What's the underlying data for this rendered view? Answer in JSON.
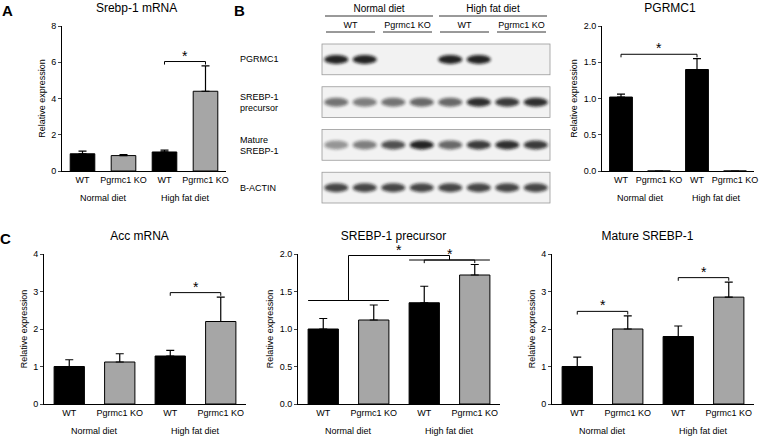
{
  "chart_data": [
    {
      "type": "bar",
      "panel": "A",
      "title": "Srebp-1 mRNA",
      "y_label": "Relative expression",
      "categories": [
        "WT",
        "Pgrmc1 KO",
        "WT",
        "Pgrmc1 KO"
      ],
      "groups": [
        "Normal diet",
        "Normal diet",
        "High fat diet",
        "High fat diet"
      ],
      "values": [
        0.95,
        0.85,
        1.05,
        4.4
      ],
      "errors": [
        0.15,
        0.05,
        0.1,
        1.4
      ],
      "colors": [
        "#000000",
        "#a6a6a6",
        "#000000",
        "#a6a6a6"
      ],
      "ylim": [
        0,
        8
      ],
      "yticks": [
        0,
        2,
        4,
        6,
        8
      ],
      "grid": false,
      "significance": [
        {
          "from": 2,
          "to": 3,
          "label": "*"
        }
      ]
    },
    {
      "type": "bar",
      "title": "PGRMC1",
      "y_label": "Relative expression",
      "categories": [
        "WT",
        "Pgrmc1 KO",
        "WT",
        "Pgrmc1 KO"
      ],
      "groups": [
        "Normal diet",
        "Normal diet",
        "High fat diet",
        "High fat diet"
      ],
      "values": [
        1.02,
        0,
        1.4,
        0
      ],
      "errors": [
        0.04,
        0,
        0.15,
        0
      ],
      "colors": [
        "#000000",
        "#a6a6a6",
        "#000000",
        "#a6a6a6"
      ],
      "ylim": [
        0,
        2
      ],
      "yticks": [
        {
          "value": 0,
          "label": "0.0"
        },
        {
          "value": 0.5,
          "label": "0.5"
        },
        {
          "value": 1,
          "label": "1.0"
        },
        {
          "value": 1.5,
          "label": "1.5"
        },
        {
          "value": 2,
          "label": "2.0"
        }
      ],
      "grid": false,
      "significance": [
        {
          "from": 0,
          "to": 2,
          "label": "*"
        }
      ]
    },
    {
      "type": "bar",
      "panel": "C",
      "title": "Acc mRNA",
      "y_label": "Relative expression",
      "categories": [
        "WT",
        "Pgrmc1 KO",
        "WT",
        "Pgrmc1 KO"
      ],
      "groups": [
        "Normal diet",
        "Normal diet",
        "High fat diet",
        "High fat diet"
      ],
      "values": [
        1.0,
        1.12,
        1.28,
        2.2
      ],
      "errors": [
        0.18,
        0.22,
        0.15,
        0.65
      ],
      "colors": [
        "#000000",
        "#a6a6a6",
        "#000000",
        "#a6a6a6"
      ],
      "ylim": [
        0,
        4
      ],
      "yticks": [
        0,
        1,
        2,
        3,
        4
      ],
      "grid": false,
      "significance": [
        {
          "from": 2,
          "to": 3,
          "label": "*"
        }
      ]
    },
    {
      "type": "bar",
      "title": "SREBP-1 precursor",
      "y_label": "Relative expression",
      "categories": [
        "WT",
        "Pgrmc1 KO",
        "WT",
        "Pgrmc1 KO"
      ],
      "groups": [
        "Normal diet",
        "Normal diet",
        "High fat diet",
        "High fat diet"
      ],
      "values": [
        1.0,
        1.12,
        1.35,
        1.72
      ],
      "errors": [
        0.14,
        0.2,
        0.22,
        0.14
      ],
      "colors": [
        "#000000",
        "#a6a6a6",
        "#000000",
        "#a6a6a6"
      ],
      "ylim": [
        0,
        2
      ],
      "yticks": [
        {
          "value": 0,
          "label": "0.0"
        },
        {
          "value": 0.5,
          "label": "0.5"
        },
        {
          "value": 1,
          "label": "1.0"
        },
        {
          "value": 1.5,
          "label": "1.5"
        },
        {
          "value": 2,
          "label": "2.0"
        }
      ],
      "grid": false,
      "significance": [
        {
          "from": 2,
          "to": 3,
          "label": "*"
        },
        {
          "from": [
            0,
            1
          ],
          "to": [
            2,
            3
          ],
          "label": "*"
        }
      ]
    },
    {
      "type": "bar",
      "title": "Mature SREBP-1",
      "y_label": "Relative expression",
      "categories": [
        "WT",
        "Pgrmc1 KO",
        "WT",
        "Pgrmc1 KO"
      ],
      "groups": [
        "Normal diet",
        "Normal diet",
        "High fat diet",
        "High fat diet"
      ],
      "values": [
        1.0,
        2.0,
        1.8,
        2.85
      ],
      "errors": [
        0.25,
        0.35,
        0.28,
        0.4
      ],
      "colors": [
        "#000000",
        "#a6a6a6",
        "#000000",
        "#a6a6a6"
      ],
      "ylim": [
        0,
        4
      ],
      "yticks": [
        0,
        1,
        2,
        3,
        4
      ],
      "grid": false,
      "significance": [
        {
          "from": 0,
          "to": 1,
          "label": "*"
        },
        {
          "from": 2,
          "to": 3,
          "label": "*"
        }
      ]
    }
  ],
  "blot": {
    "panel": "B",
    "groups": [
      "Normal diet",
      "High fat diet"
    ],
    "lanes": [
      "WT",
      "Pgrmc1 KO",
      "WT",
      "Pgrmc1 KO"
    ],
    "rows": [
      {
        "label": "PGRMC1",
        "band_intensity": [
          0.9,
          0.9,
          0,
          0,
          0.9,
          0.9,
          0,
          0
        ]
      },
      {
        "label": "SREBP-1 precursor",
        "band_intensity": [
          0.55,
          0.5,
          0.55,
          0.6,
          0.6,
          0.85,
          0.8,
          0.85
        ]
      },
      {
        "label": "Mature SREBP-1",
        "band_intensity": [
          0.4,
          0.5,
          0.7,
          0.9,
          0.6,
          0.8,
          0.85,
          0.8
        ]
      },
      {
        "label": "B-ACTIN",
        "band_intensity": [
          0.75,
          0.75,
          0.75,
          0.75,
          0.75,
          0.75,
          0.75,
          0.75
        ]
      }
    ]
  }
}
